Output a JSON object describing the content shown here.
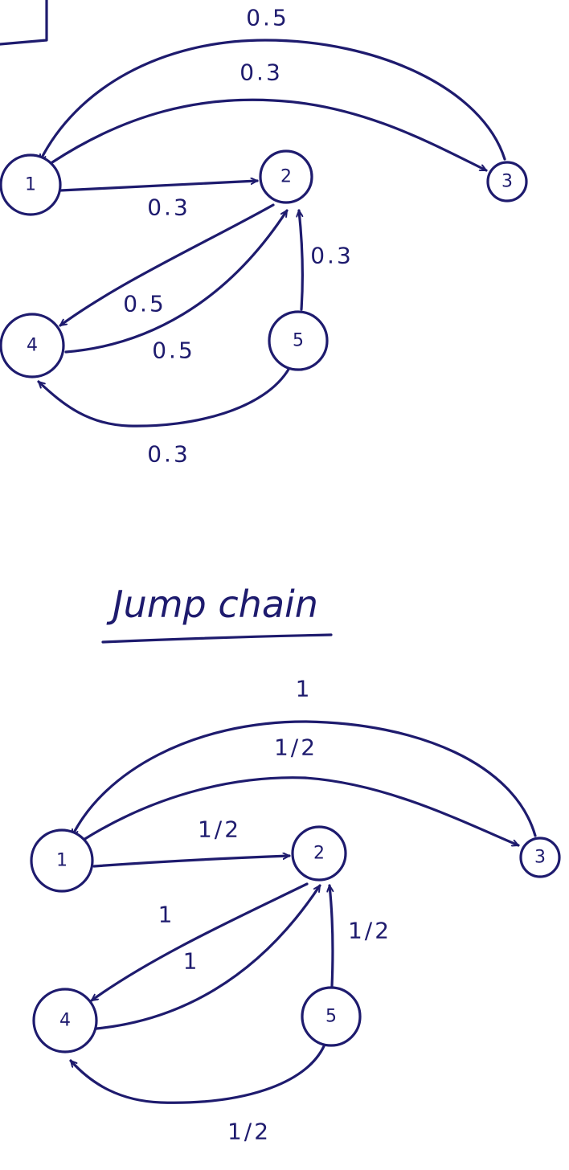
{
  "colors": {
    "ink": "#1e1b6e",
    "background": "#ffffff"
  },
  "rate_diagram": {
    "nodes": [
      {
        "id": "1",
        "label": "1"
      },
      {
        "id": "2",
        "label": "2"
      },
      {
        "id": "3",
        "label": "3"
      },
      {
        "id": "4",
        "label": "4"
      },
      {
        "id": "5",
        "label": "5"
      }
    ],
    "edges": [
      {
        "from": "3",
        "to": "1",
        "label": "0.5"
      },
      {
        "from": "1",
        "to": "3",
        "label": "0.3"
      },
      {
        "from": "1",
        "to": "2",
        "label": "0.3"
      },
      {
        "from": "2",
        "to": "4",
        "label": "0.5"
      },
      {
        "from": "4",
        "to": "2",
        "label": "0.5"
      },
      {
        "from": "5",
        "to": "2",
        "label": "0.3"
      },
      {
        "from": "5",
        "to": "4",
        "label": "0.3"
      }
    ]
  },
  "jump_chain": {
    "title": "Jump chain",
    "nodes": [
      {
        "id": "1",
        "label": "1"
      },
      {
        "id": "2",
        "label": "2"
      },
      {
        "id": "3",
        "label": "3"
      },
      {
        "id": "4",
        "label": "4"
      },
      {
        "id": "5",
        "label": "5"
      }
    ],
    "edges": [
      {
        "from": "3",
        "to": "1",
        "label": "1"
      },
      {
        "from": "1",
        "to": "3",
        "label": "1/2"
      },
      {
        "from": "1",
        "to": "2",
        "label": "1/2"
      },
      {
        "from": "2",
        "to": "4",
        "label": "1"
      },
      {
        "from": "4",
        "to": "2",
        "label": "1"
      },
      {
        "from": "5",
        "to": "2",
        "label": "1/2"
      },
      {
        "from": "5",
        "to": "4",
        "label": "1/2"
      }
    ]
  }
}
